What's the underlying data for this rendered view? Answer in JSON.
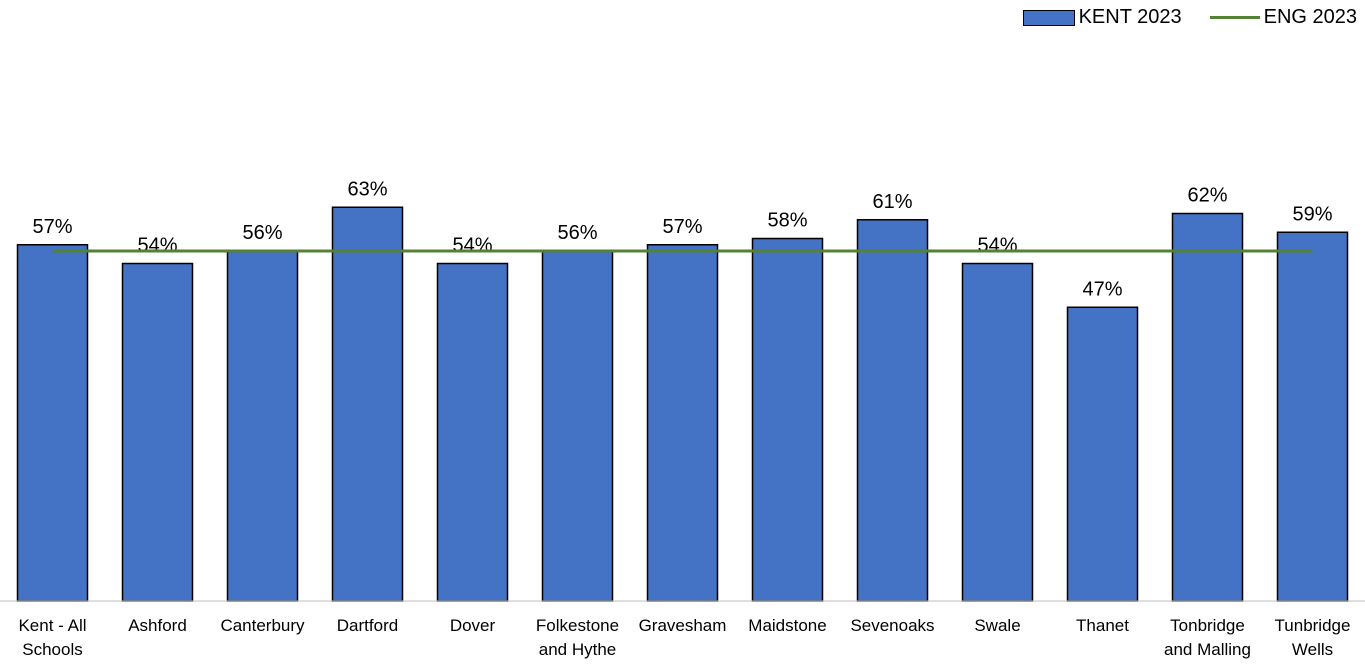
{
  "chart_data": {
    "type": "bar",
    "categories": [
      "Kent - All Schools",
      "Ashford",
      "Canterbury",
      "Dartford",
      "Dover",
      "Folkestone and Hythe",
      "Gravesham",
      "Maidstone",
      "Sevenoaks",
      "Swale",
      "Thanet",
      "Tonbridge and Malling",
      "Tunbridge Wells"
    ],
    "category_lines": [
      [
        "Kent - All",
        "Schools"
      ],
      [
        "Ashford"
      ],
      [
        "Canterbury"
      ],
      [
        "Dartford"
      ],
      [
        "Dover"
      ],
      [
        "Folkestone",
        "and Hythe"
      ],
      [
        "Gravesham"
      ],
      [
        "Maidstone"
      ],
      [
        "Sevenoaks"
      ],
      [
        "Swale"
      ],
      [
        "Thanet"
      ],
      [
        "Tonbridge",
        "and Malling"
      ],
      [
        "Tunbridge",
        "Wells"
      ]
    ],
    "series": [
      {
        "name": "KENT 2023",
        "type": "bar",
        "color": "#4472C4",
        "values": [
          57,
          54,
          56,
          63,
          54,
          56,
          57,
          58,
          61,
          54,
          47,
          62,
          59
        ]
      },
      {
        "name": "ENG 2023",
        "type": "line",
        "color": "#548235",
        "values": [
          56,
          56,
          56,
          56,
          56,
          56,
          56,
          56,
          56,
          56,
          56,
          56,
          56
        ]
      }
    ],
    "data_labels": [
      "57%",
      "54%",
      "56%",
      "63%",
      "54%",
      "56%",
      "57%",
      "58%",
      "61%",
      "54%",
      "47%",
      "62%",
      "59%"
    ],
    "ylim": [
      0,
      100
    ],
    "grid": false,
    "legend_position": "top-right"
  }
}
